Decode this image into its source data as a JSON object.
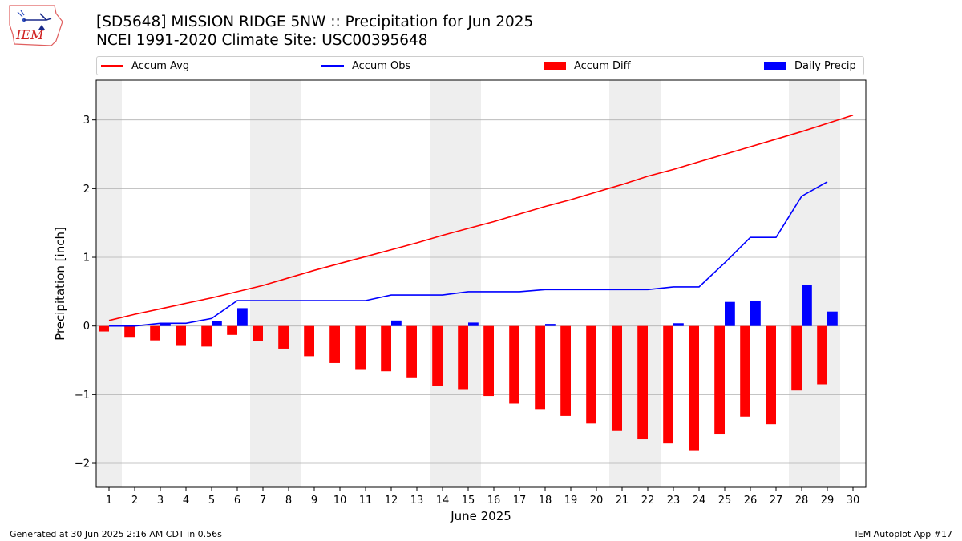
{
  "header": {
    "title_line1": "[SD5648] MISSION RIDGE 5NW :: Precipitation for Jun 2025",
    "title_line2": "NCEI 1991-2020 Climate Site: USC00395648",
    "logo_text": "IEM"
  },
  "footer": {
    "generated": "Generated at 30 Jun 2025 2:16 AM CDT in 0.56s",
    "app": "IEM Autoplot App #17"
  },
  "colors": {
    "accum_avg": "#ff0000",
    "accum_obs": "#0000ff",
    "accum_diff": "#ff0000",
    "daily_precip": "#0000ff",
    "weekend_shade": "#eeeeee",
    "grid": "#b0b0b0"
  },
  "chart_data": {
    "type": "bar",
    "xlabel": "June 2025",
    "ylabel": "Precipitation [inch]",
    "x": [
      1,
      2,
      3,
      4,
      5,
      6,
      7,
      8,
      9,
      10,
      11,
      12,
      13,
      14,
      15,
      16,
      17,
      18,
      19,
      20,
      21,
      22,
      23,
      24,
      25,
      26,
      27,
      28,
      29,
      30
    ],
    "xlim": [
      0.5,
      30.5
    ],
    "ylim": [
      -2.35,
      3.58
    ],
    "yticks": [
      -2,
      -1,
      0,
      1,
      2,
      3
    ],
    "ytick_labels": [
      "−2",
      "−1",
      "0",
      "1",
      "2",
      "3"
    ],
    "grid": "horizontal",
    "legend_placement": "top",
    "weekend_shading": [
      [
        0.5,
        1.5
      ],
      [
        6.5,
        8.5
      ],
      [
        13.5,
        15.5
      ],
      [
        20.5,
        22.5
      ],
      [
        27.5,
        29.5
      ]
    ],
    "series": [
      {
        "name": "Accum Avg",
        "type": "line",
        "values": [
          0.08,
          0.17,
          0.25,
          0.33,
          0.41,
          0.5,
          0.59,
          0.7,
          0.81,
          0.91,
          1.01,
          1.11,
          1.21,
          1.32,
          1.42,
          1.52,
          1.63,
          1.74,
          1.84,
          1.95,
          2.06,
          2.18,
          2.28,
          2.39,
          2.5,
          2.61,
          2.72,
          2.83,
          2.95,
          3.07
        ]
      },
      {
        "name": "Accum Obs",
        "type": "line",
        "values": [
          0.0,
          0.0,
          0.04,
          0.04,
          0.11,
          0.37,
          0.37,
          0.37,
          0.37,
          0.37,
          0.37,
          0.45,
          0.45,
          0.45,
          0.5,
          0.5,
          0.5,
          0.53,
          0.53,
          0.53,
          0.53,
          0.53,
          0.57,
          0.57,
          0.92,
          1.29,
          1.29,
          1.89,
          2.1,
          null
        ]
      },
      {
        "name": "Accum Diff",
        "type": "bar",
        "values": [
          -0.08,
          -0.17,
          -0.21,
          -0.29,
          -0.3,
          -0.13,
          -0.22,
          -0.33,
          -0.44,
          -0.54,
          -0.64,
          -0.66,
          -0.76,
          -0.87,
          -0.92,
          -1.02,
          -1.13,
          -1.21,
          -1.31,
          -1.42,
          -1.53,
          -1.65,
          -1.71,
          -1.82,
          -1.58,
          -1.32,
          -1.43,
          -0.94,
          -0.85,
          null
        ]
      },
      {
        "name": "Daily Precip",
        "type": "bar",
        "values": [
          0.0,
          0.0,
          0.04,
          0.0,
          0.07,
          0.26,
          0.0,
          0.0,
          0.0,
          0.0,
          0.0,
          0.08,
          0.0,
          0.0,
          0.05,
          0.0,
          0.0,
          0.03,
          0.0,
          0.0,
          0.0,
          0.0,
          0.04,
          0.0,
          0.35,
          0.37,
          0.0,
          0.6,
          0.21,
          null
        ]
      }
    ]
  }
}
